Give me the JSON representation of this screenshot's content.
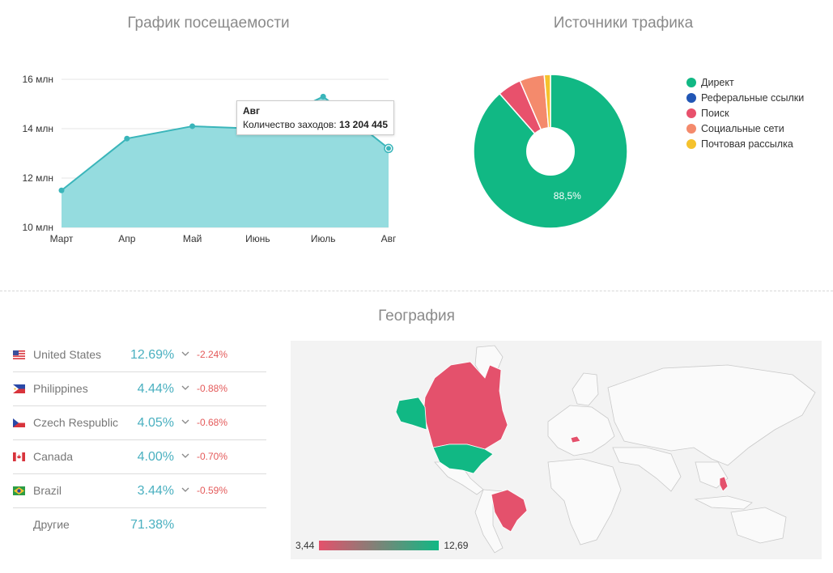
{
  "visits": {
    "title": "График посещаемости",
    "tooltip": {
      "month": "Авг",
      "label": "Количество заходов:",
      "value": "13 204 445"
    }
  },
  "sources": {
    "title": "Источники трафика",
    "legend": [
      {
        "label": "Директ",
        "color": "#11b884"
      },
      {
        "label": "Реферальные ссылки",
        "color": "#2156b5"
      },
      {
        "label": "Поиск",
        "color": "#e8516c"
      },
      {
        "label": "Социальные сети",
        "color": "#f48a6c"
      },
      {
        "label": "Почтовая рассылка",
        "color": "#f5c22d"
      }
    ]
  },
  "geo": {
    "title": "География",
    "rows": [
      {
        "country": "United States",
        "pct": "12.69%",
        "delta": "-2.24%",
        "flag": "flag-us-icon"
      },
      {
        "country": "Philippines",
        "pct": "4.44%",
        "delta": "-0.88%",
        "flag": "flag-ph-icon"
      },
      {
        "country": "Czech Respublic",
        "pct": "4.05%",
        "delta": "-0.68%",
        "flag": "flag-cz-icon"
      },
      {
        "country": "Canada",
        "pct": "4.00%",
        "delta": "-0.70%",
        "flag": "flag-ca-icon"
      },
      {
        "country": "Brazil",
        "pct": "3.44%",
        "delta": "-0.59%",
        "flag": "flag-br-icon"
      }
    ],
    "other": {
      "label": "Другие",
      "pct": "71.38%"
    },
    "scale": {
      "min": "3,44",
      "max": "12,69",
      "min_color": "#e4516c",
      "max_color": "#11b884"
    }
  },
  "chart_data": [
    {
      "type": "area",
      "title": "График посещаемости",
      "categories": [
        "Март",
        "Апр",
        "Май",
        "Июнь",
        "Июль",
        "Авг"
      ],
      "series": [
        {
          "values": [
            11.5,
            13.6,
            14.1,
            14.0,
            15.3,
            13.2
          ]
        }
      ],
      "y_unit": "млн",
      "yticks": [
        "10 млн",
        "12 млн",
        "14 млн",
        "16 млн"
      ],
      "ylim": [
        10,
        16
      ],
      "grid": true,
      "color": "#3ab5ba",
      "fill": "#95dcdf"
    },
    {
      "type": "pie",
      "title": "Источники трафика",
      "donut": true,
      "slices": [
        {
          "label": "Директ",
          "value": 88.5,
          "color": "#11b884",
          "display": "88,5%"
        },
        {
          "label": "Реферальные ссылки",
          "value": 0.0,
          "color": "#2156b5"
        },
        {
          "label": "Поиск",
          "value": 5.0,
          "color": "#e8516c"
        },
        {
          "label": "Социальные сети",
          "value": 5.2,
          "color": "#f48a6c"
        },
        {
          "label": "Почтовая рассылка",
          "value": 1.3,
          "color": "#f5c22d"
        }
      ],
      "legend_position": "right"
    }
  ]
}
